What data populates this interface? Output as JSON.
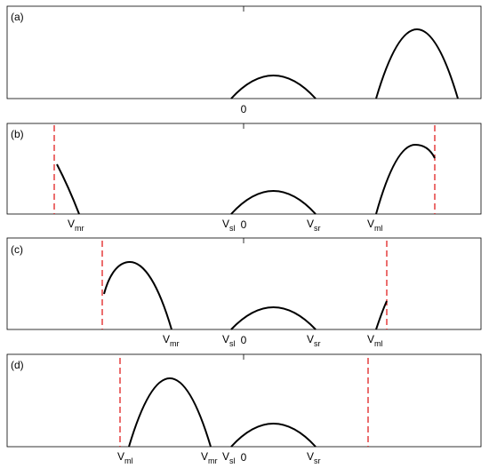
{
  "panels": [
    {
      "label": "(a)",
      "axis_labels": [
        {
          "text": "0"
        }
      ]
    },
    {
      "label": "(b)",
      "axis_labels": [
        {
          "text": "V",
          "sub": "mr"
        },
        {
          "text": "V",
          "sub": "sl"
        },
        {
          "text": "0"
        },
        {
          "text": "V",
          "sub": "sr"
        },
        {
          "text": "V",
          "sub": "ml"
        }
      ]
    },
    {
      "label": "(c)",
      "axis_labels": [
        {
          "text": "V",
          "sub": "mr"
        },
        {
          "text": "V",
          "sub": "sl"
        },
        {
          "text": "0"
        },
        {
          "text": "V",
          "sub": "sr"
        },
        {
          "text": "V",
          "sub": "ml"
        }
      ]
    },
    {
      "label": "(d)",
      "axis_labels": [
        {
          "text": "V",
          "sub": "ml"
        },
        {
          "text": "V",
          "sub": "mr"
        },
        {
          "text": "V",
          "sub": "sl"
        },
        {
          "text": "0"
        },
        {
          "text": "V",
          "sub": "sr"
        }
      ]
    }
  ]
}
